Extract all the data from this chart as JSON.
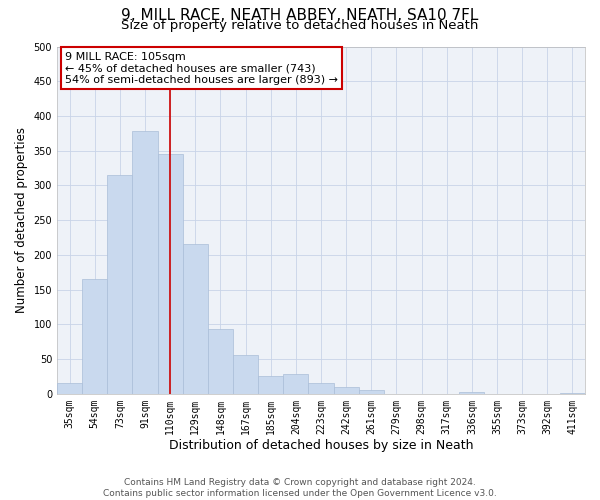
{
  "title": "9, MILL RACE, NEATH ABBEY, NEATH, SA10 7FL",
  "subtitle": "Size of property relative to detached houses in Neath",
  "xlabel": "Distribution of detached houses by size in Neath",
  "ylabel": "Number of detached properties",
  "bar_labels": [
    "35sqm",
    "54sqm",
    "73sqm",
    "91sqm",
    "110sqm",
    "129sqm",
    "148sqm",
    "167sqm",
    "185sqm",
    "204sqm",
    "223sqm",
    "242sqm",
    "261sqm",
    "279sqm",
    "298sqm",
    "317sqm",
    "336sqm",
    "355sqm",
    "373sqm",
    "392sqm",
    "411sqm"
  ],
  "bar_values": [
    16,
    165,
    315,
    378,
    345,
    215,
    93,
    56,
    25,
    29,
    15,
    10,
    6,
    0,
    0,
    0,
    2,
    0,
    0,
    0,
    1
  ],
  "bar_color": "#c9d9ee",
  "bar_edge_color": "#aabdd8",
  "marker_idx": 4,
  "marker_line_color": "#cc0000",
  "annotation_title": "9 MILL RACE: 105sqm",
  "annotation_line1": "← 45% of detached houses are smaller (743)",
  "annotation_line2": "54% of semi-detached houses are larger (893) →",
  "box_edge_color": "#cc0000",
  "ylim": [
    0,
    500
  ],
  "yticks": [
    0,
    50,
    100,
    150,
    200,
    250,
    300,
    350,
    400,
    450,
    500
  ],
  "footer1": "Contains HM Land Registry data © Crown copyright and database right 2024.",
  "footer2": "Contains public sector information licensed under the Open Government Licence v3.0.",
  "title_fontsize": 11,
  "subtitle_fontsize": 9.5,
  "xlabel_fontsize": 9,
  "ylabel_fontsize": 8.5,
  "tick_fontsize": 7,
  "annotation_fontsize": 8,
  "footer_fontsize": 6.5,
  "bg_color": "#eef2f8",
  "grid_color": "#c8d4e8"
}
